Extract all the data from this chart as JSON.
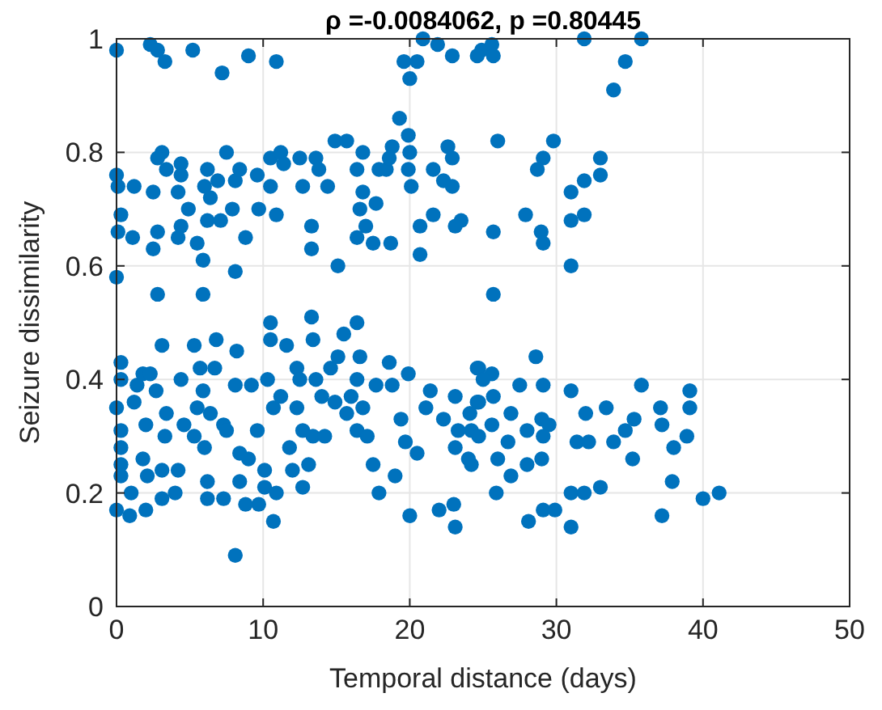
{
  "chart_data": {
    "type": "scatter",
    "title": "ρ =-0.0084062, p =0.80445",
    "xlabel": "Temporal distance (days)",
    "ylabel": "Seizure dissimilarity",
    "xlim": [
      0,
      50
    ],
    "ylim": [
      0,
      1
    ],
    "xticks": [
      0,
      10,
      20,
      30,
      40,
      50
    ],
    "yticks": [
      0,
      0.2,
      0.4,
      0.6,
      0.8,
      1
    ],
    "grid": true,
    "marker": "circle",
    "series": [
      {
        "color": "#0072bd",
        "x": [
          0,
          2.3,
          2.8,
          3.3,
          5.2,
          9,
          7.2,
          10.9,
          19.6,
          20,
          20.5,
          20.9,
          21.9,
          22.9,
          24.9,
          24.6,
          25.6,
          25.7,
          31.9,
          35.8,
          34.7,
          33.9,
          0,
          0.1,
          1.2,
          0.3,
          0.1,
          1.1,
          0,
          3.1,
          2.8,
          3.4,
          2.5,
          2.8,
          2.5,
          4.4,
          4.4,
          4.2,
          4.4,
          4.2,
          4.9,
          5.5,
          5.9,
          2.8,
          5.9,
          6.2,
          6,
          6.4,
          6.2,
          7.1,
          6.9,
          7.5,
          8.1,
          8.4,
          8.8,
          7.9,
          8.1,
          9.6,
          9.7,
          10.5,
          11.2,
          10.9,
          10.5,
          11.4,
          12.5,
          12.7,
          13.6,
          13.3,
          13.3,
          13.8,
          14.4,
          14.9,
          15.7,
          15.1,
          16.8,
          16.4,
          16.8,
          16.6,
          16.4,
          17,
          17.5,
          17.7,
          17.9,
          18.4,
          18.8,
          18.6,
          19.3,
          19.9,
          20,
          19.9,
          20.1,
          18.7,
          20.7,
          20.7,
          21.6,
          21.6,
          22.6,
          22.9,
          22.3,
          22.9,
          23.5,
          23.1,
          26,
          29.8,
          29.1,
          28.7,
          33,
          33,
          31.9,
          31,
          27.9,
          28.96,
          29.1,
          31,
          31.9,
          25.7,
          31,
          25.7,
          0.3,
          0.3,
          0,
          0.3,
          0.3,
          0.3,
          0.3,
          0,
          0.9,
          1,
          1.2,
          1.4,
          1.8,
          2,
          2,
          1.8,
          2.1,
          2.3,
          2.7,
          3.1,
          3.1,
          3.1,
          3.4,
          3.3,
          4,
          4.4,
          4.6,
          4.2,
          5.3,
          5.7,
          5.5,
          5.9,
          5.3,
          6,
          6.2,
          6.2,
          6.8,
          6.7,
          6.4,
          7.3,
          7.3,
          7.5,
          8.1,
          8.2,
          8.1,
          8.4,
          8.4,
          8.8,
          9.2,
          9.6,
          9,
          9.7,
          10.1,
          10.1,
          10.5,
          10.5,
          10.3,
          10.7,
          10.7,
          10.9,
          11.2,
          11.6,
          11.8,
          12,
          12.3,
          12.3,
          12.5,
          12.7,
          12.7,
          13.3,
          13.4,
          13.1,
          13.4,
          13.6,
          14,
          14.2,
          14.6,
          15.1,
          14.9,
          15.5,
          15.7,
          16,
          16.4,
          16.6,
          16.4,
          16.8,
          16.4,
          17.1,
          17.5,
          17.9,
          17.7,
          18.6,
          18.8,
          19.4,
          19,
          19.7,
          19.9,
          20,
          20.5,
          21.1,
          21.4,
          22,
          22.3,
          23.1,
          23.1,
          23.1,
          23.3,
          24.2,
          24.6,
          24.7,
          24.2,
          23,
          24.6,
          25.6,
          25,
          24.7,
          24.1,
          25.7,
          25.6,
          24.7,
          24,
          26,
          25.9,
          26.9,
          26.7,
          26.9,
          27.5,
          28,
          28,
          28.1,
          28.6,
          29,
          29.1,
          29.5,
          29.1,
          29,
          29.1,
          29.9,
          31,
          32,
          31.4,
          32.2,
          31,
          31.9,
          31,
          33,
          33.4,
          33.9,
          34.7,
          35.3,
          35.8,
          35.2,
          37.1,
          37.2,
          38,
          37.9,
          37.2,
          39.1,
          39.1,
          38.9,
          40,
          41.1
        ],
        "values": [
          0.98,
          0.99,
          0.98,
          0.96,
          0.98,
          0.97,
          0.94,
          0.96,
          0.96,
          0.93,
          0.96,
          1,
          0.99,
          0.97,
          0.98,
          0.97,
          0.99,
          0.97,
          1,
          1,
          0.96,
          0.91,
          0.76,
          0.74,
          0.74,
          0.69,
          0.66,
          0.65,
          0.58,
          0.8,
          0.79,
          0.77,
          0.73,
          0.66,
          0.63,
          0.78,
          0.76,
          0.73,
          0.67,
          0.65,
          0.7,
          0.64,
          0.61,
          0.55,
          0.55,
          0.77,
          0.74,
          0.72,
          0.68,
          0.68,
          0.75,
          0.8,
          0.75,
          0.77,
          0.65,
          0.7,
          0.59,
          0.76,
          0.7,
          0.79,
          0.8,
          0.69,
          0.74,
          0.78,
          0.79,
          0.74,
          0.79,
          0.67,
          0.63,
          0.77,
          0.74,
          0.82,
          0.82,
          0.6,
          0.8,
          0.77,
          0.73,
          0.7,
          0.65,
          0.67,
          0.64,
          0.71,
          0.77,
          0.77,
          0.81,
          0.79,
          0.86,
          0.83,
          0.8,
          0.77,
          0.74,
          0.64,
          0.67,
          0.62,
          0.69,
          0.77,
          0.81,
          0.79,
          0.75,
          0.74,
          0.68,
          0.67,
          0.82,
          0.82,
          0.79,
          0.77,
          0.79,
          0.76,
          0.75,
          0.73,
          0.69,
          0.66,
          0.64,
          0.68,
          0.69,
          0.66,
          0.6,
          0.55,
          0.43,
          0.4,
          0.35,
          0.31,
          0.28,
          0.25,
          0.23,
          0.17,
          0.16,
          0.2,
          0.36,
          0.39,
          0.41,
          0.32,
          0.17,
          0.26,
          0.23,
          0.41,
          0.38,
          0.46,
          0.24,
          0.19,
          0.34,
          0.3,
          0.2,
          0.4,
          0.32,
          0.24,
          0.46,
          0.42,
          0.35,
          0.38,
          0.3,
          0.28,
          0.22,
          0.19,
          0.47,
          0.42,
          0.34,
          0.32,
          0.19,
          0.31,
          0.39,
          0.45,
          0.09,
          0.22,
          0.27,
          0.18,
          0.39,
          0.31,
          0.26,
          0.18,
          0.24,
          0.21,
          0.5,
          0.47,
          0.4,
          0.35,
          0.15,
          0.2,
          0.37,
          0.46,
          0.28,
          0.24,
          0.42,
          0.35,
          0.4,
          0.31,
          0.21,
          0.51,
          0.47,
          0.25,
          0.3,
          0.4,
          0.37,
          0.3,
          0.42,
          0.44,
          0.36,
          0.48,
          0.34,
          0.37,
          0.5,
          0.44,
          0.4,
          0.35,
          0.31,
          0.3,
          0.25,
          0.2,
          0.39,
          0.43,
          0.39,
          0.33,
          0.23,
          0.29,
          0.41,
          0.16,
          0.27,
          0.35,
          0.38,
          0.17,
          0.33,
          0.37,
          0.28,
          0.14,
          0.31,
          0.25,
          0.36,
          0.42,
          0.31,
          0.18,
          0.42,
          0.41,
          0.4,
          0.36,
          0.34,
          0.37,
          0.32,
          0.3,
          0.26,
          0.26,
          0.2,
          0.34,
          0.29,
          0.23,
          0.39,
          0.31,
          0.25,
          0.15,
          0.44,
          0.33,
          0.39,
          0.32,
          0.3,
          0.26,
          0.17,
          0.17,
          0.38,
          0.34,
          0.29,
          0.29,
          0.2,
          0.2,
          0.14,
          0.21,
          0.35,
          0.29,
          0.31,
          0.33,
          0.39,
          0.26,
          0.35,
          0.32,
          0.28,
          0.22,
          0.16,
          0.38,
          0.35,
          0.3,
          0.19,
          0.2
        ]
      }
    ]
  }
}
